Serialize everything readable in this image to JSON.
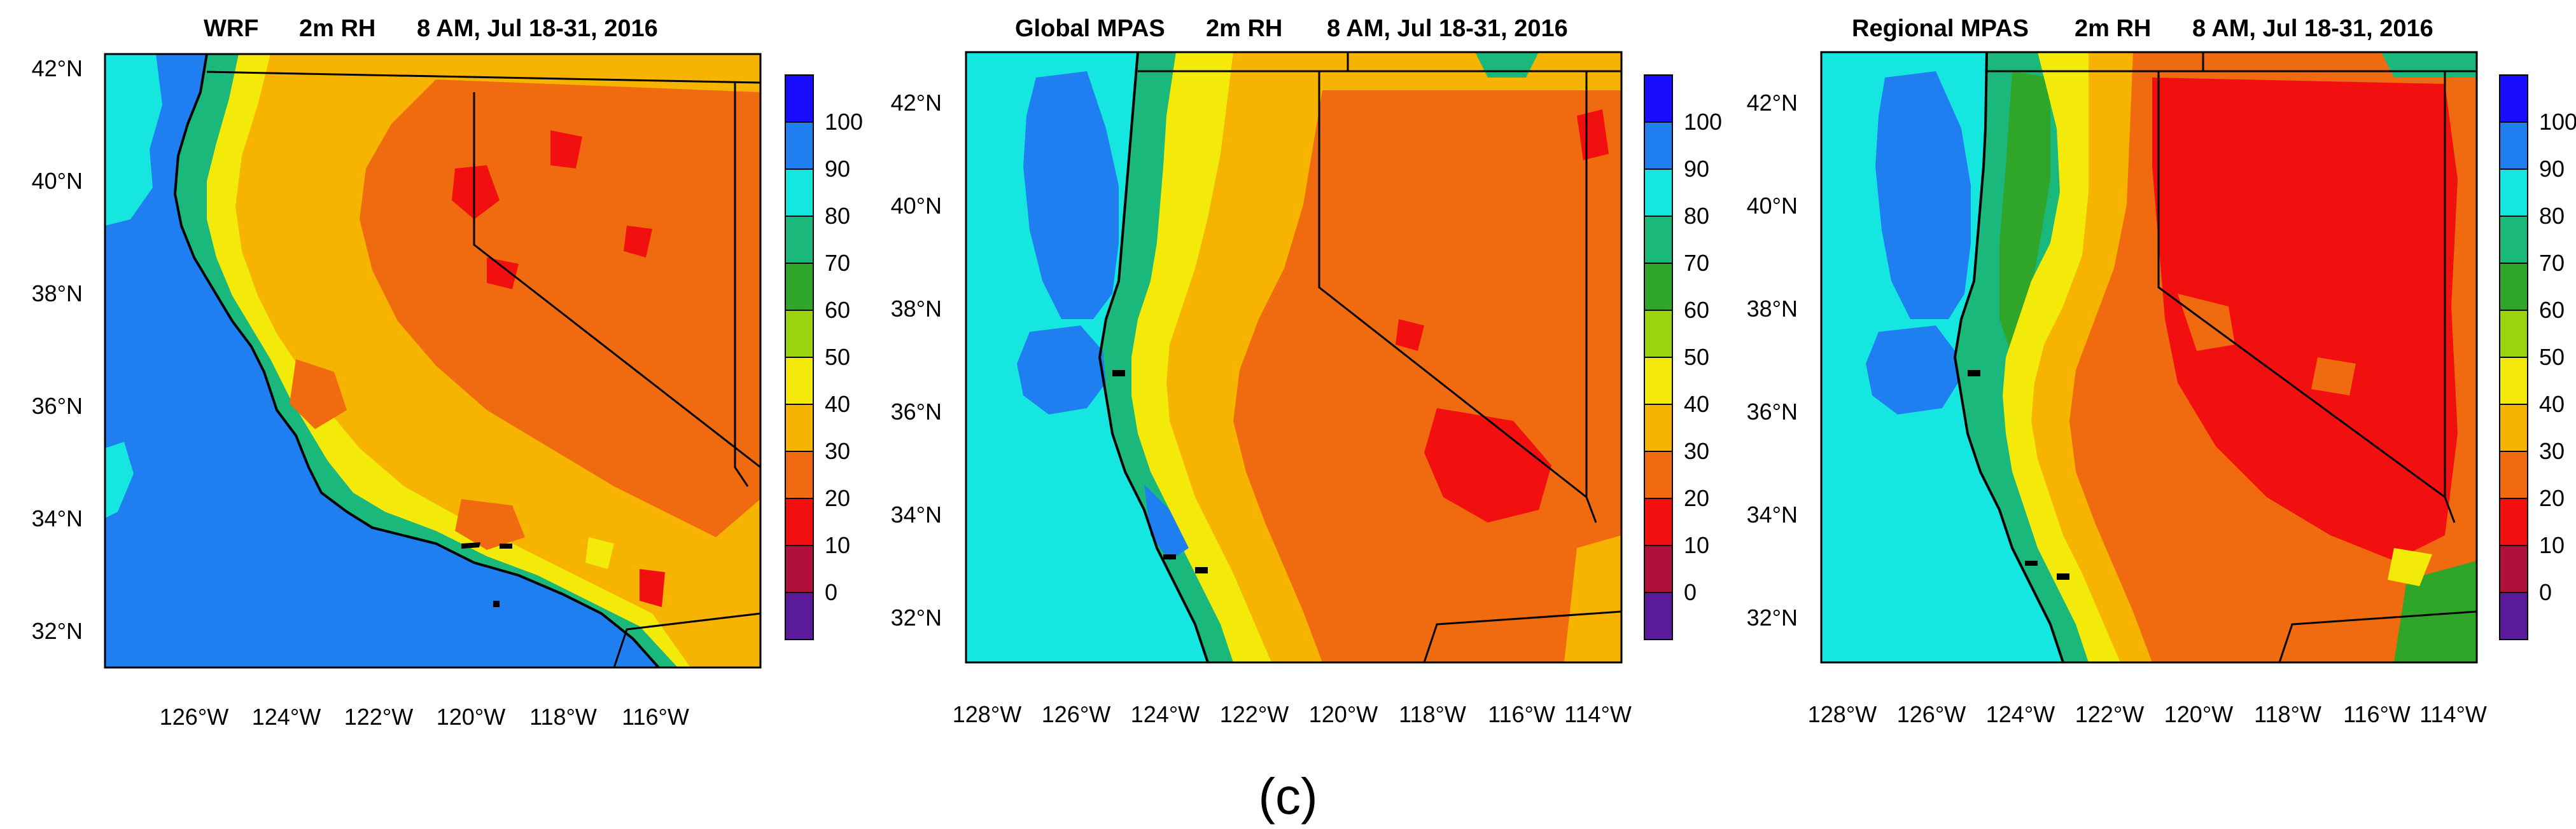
{
  "figure_label": "(c)",
  "panels": [
    {
      "model": "WRF",
      "variable": "2m RH",
      "period": "8 AM, Jul 18-31, 2016",
      "lat_labels": [
        "42°N",
        "40°N",
        "38°N",
        "36°N",
        "34°N",
        "32°N"
      ],
      "lon_labels": [
        "126°W",
        "124°W",
        "122°W",
        "120°W",
        "118°W",
        "116°W"
      ]
    },
    {
      "model": "Global MPAS",
      "variable": "2m RH",
      "period": "8 AM, Jul 18-31, 2016",
      "lat_labels": [
        "42°N",
        "40°N",
        "38°N",
        "36°N",
        "34°N",
        "32°N"
      ],
      "lon_labels": [
        "128°W",
        "126°W",
        "124°W",
        "122°W",
        "120°W",
        "118°W",
        "116°W",
        "114°W"
      ]
    },
    {
      "model": "Regional MPAS",
      "variable": "2m RH",
      "period": "8 AM, Jul 18-31, 2016",
      "lat_labels": [
        "42°N",
        "40°N",
        "38°N",
        "36°N",
        "34°N",
        "32°N"
      ],
      "lon_labels": [
        "128°W",
        "126°W",
        "124°W",
        "122°W",
        "120°W",
        "118°W",
        "116°W",
        "114°W"
      ]
    }
  ],
  "colorbar": {
    "labels": [
      "100",
      "90",
      "80",
      "70",
      "60",
      "50",
      "40",
      "30",
      "20",
      "10",
      "0"
    ],
    "colors": [
      "#1a0dff",
      "#1f7ff0",
      "#15e6e0",
      "#1ab87a",
      "#2fa52a",
      "#9bd40d",
      "#f4ea0a",
      "#f6b400",
      "#f06a0f",
      "#f20f0f",
      "#b2103c",
      "#5a1a9a"
    ]
  },
  "legend_colors": {
    "ocean": "#1f7ff0",
    "ocean_light": "#15e6e0",
    "coast_green": "#1ab87a",
    "yellow": "#f4ea0a",
    "orange_light": "#f6b400",
    "orange": "#f06a0f",
    "red": "#f20f0f"
  }
}
